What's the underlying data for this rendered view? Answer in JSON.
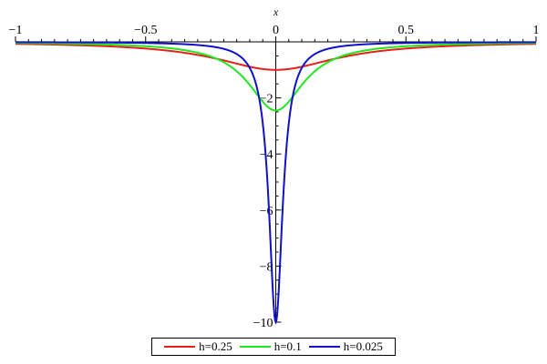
{
  "chart_data": {
    "type": "line",
    "xlabel": "x",
    "ylabel": "",
    "xlim": [
      -1,
      1
    ],
    "ylim": [
      -10,
      0
    ],
    "x_ticks": [
      {
        "value": -1,
        "label": "−1"
      },
      {
        "value": -0.5,
        "label": "−0.5"
      },
      {
        "value": 0,
        "label": "0"
      },
      {
        "value": 0.5,
        "label": "0.5"
      },
      {
        "value": 1,
        "label": "1"
      }
    ],
    "y_ticks": [
      {
        "value": -2,
        "label": "−2"
      },
      {
        "value": -4,
        "label": "−4"
      },
      {
        "value": -6,
        "label": "−6"
      },
      {
        "value": -8,
        "label": "−8"
      },
      {
        "value": -10,
        "label": "−10"
      }
    ],
    "series": [
      {
        "name": "h=0.25",
        "color": "#e8201c",
        "h": 0.25,
        "x": [
          -1,
          -0.75,
          -0.5,
          -0.25,
          0,
          0.25,
          0.5,
          0.75,
          1
        ],
        "y": [
          -0.19,
          -0.28,
          -0.45,
          -0.8,
          -1.0,
          -0.8,
          -0.45,
          -0.28,
          -0.19
        ]
      },
      {
        "name": "h=0.1",
        "color": "#1fe81f",
        "h": 0.1,
        "x": [
          -1,
          -0.5,
          -0.3,
          -0.2,
          -0.1,
          0,
          0.1,
          0.2,
          0.3,
          0.5,
          1
        ],
        "y": [
          -0.06,
          -0.16,
          -0.35,
          -0.66,
          -1.6,
          -2.45,
          -1.6,
          -0.66,
          -0.35,
          -0.16,
          -0.06
        ]
      },
      {
        "name": "h=0.025",
        "color": "#1010c8",
        "h": 0.025,
        "x": [
          -1,
          -0.5,
          -0.1,
          -0.05,
          -0.025,
          0,
          0.025,
          0.05,
          0.1,
          0.5,
          1
        ],
        "y": [
          -0.01,
          -0.06,
          -0.15,
          -0.5,
          -4.0,
          -10.0,
          -4.0,
          -0.5,
          -0.15,
          -0.06,
          -0.01
        ]
      }
    ],
    "legend_position": "bottom",
    "grid": false
  }
}
